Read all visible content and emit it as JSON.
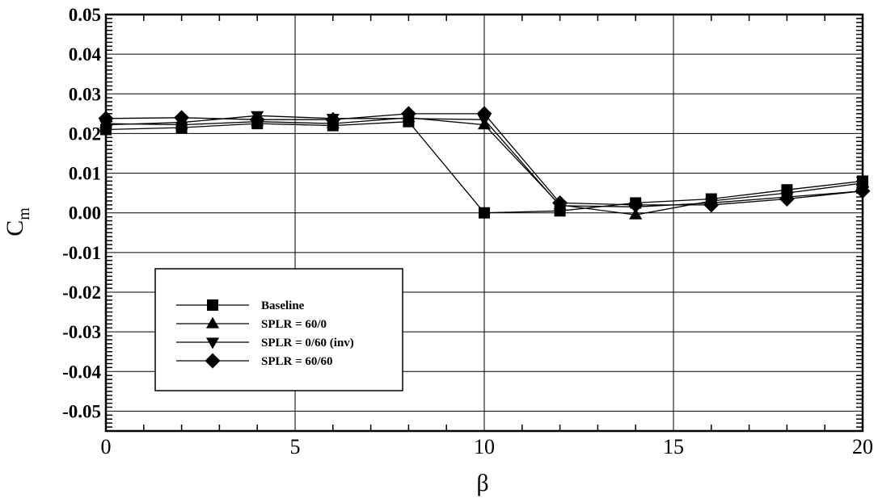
{
  "chart_data": {
    "type": "line",
    "xlabel": "β",
    "ylabel": "C",
    "ylabel_sub": "m",
    "xlim": [
      0,
      20
    ],
    "ylim": [
      -0.055,
      0.05
    ],
    "x_ticks": [
      "0",
      "5",
      "10",
      "15",
      "20"
    ],
    "y_ticks": [
      "0.05",
      "0.04",
      "0.03",
      "0.02",
      "0.01",
      "0.00",
      "-0.01",
      "-0.02",
      "-0.03",
      "-0.04",
      "-0.05"
    ],
    "grid": true,
    "legend_position": "lower-left",
    "series": [
      {
        "name": "Baseline",
        "marker": "square",
        "x": [
          0,
          2,
          4,
          6,
          8,
          10,
          12,
          14,
          16,
          18,
          20
        ],
        "y": [
          0.021,
          0.0215,
          0.0225,
          0.022,
          0.023,
          0.0,
          0.0005,
          0.0025,
          0.0035,
          0.0058,
          0.008
        ]
      },
      {
        "name": "SPLR = 60/0",
        "marker": "triangle-up",
        "x": [
          0,
          2,
          4,
          6,
          8,
          10,
          12,
          14,
          16,
          18,
          20
        ],
        "y": [
          0.0225,
          0.0222,
          0.023,
          0.0225,
          0.024,
          0.0222,
          0.002,
          -0.0005,
          0.003,
          0.005,
          0.0075
        ]
      },
      {
        "name": "SPLR = 0/60 (inv)",
        "marker": "triangle-down",
        "x": [
          0,
          2,
          4,
          6,
          8,
          10,
          12,
          14,
          16,
          18,
          20
        ],
        "y": [
          0.0222,
          0.0228,
          0.0245,
          0.0238,
          0.0238,
          0.0235,
          0.0018,
          0.0015,
          0.0025,
          0.004,
          0.0055
        ]
      },
      {
        "name": "SPLR = 60/60",
        "marker": "diamond",
        "x": [
          0,
          2,
          4,
          6,
          8,
          10,
          12,
          14,
          16,
          18,
          20
        ],
        "y": [
          0.0238,
          0.024,
          0.0235,
          0.0235,
          0.025,
          0.025,
          0.0025,
          0.002,
          0.002,
          0.0035,
          0.0055
        ]
      }
    ]
  }
}
